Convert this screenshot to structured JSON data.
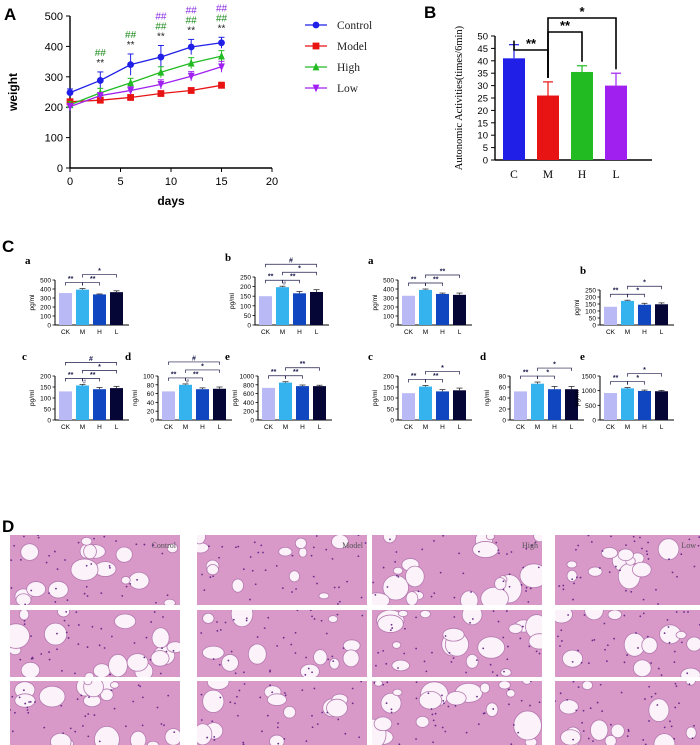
{
  "panels": {
    "A": "A",
    "B": "B",
    "C": "C",
    "D": "D"
  },
  "colors": {
    "control": "#1f1fe8",
    "model": "#e81414",
    "high": "#22bb22",
    "low": "#a020f0",
    "ck": "#b9b9f5",
    "m": "#35b3ee",
    "h": "#1046bf",
    "l": "#050536",
    "stat_dark": "#1a1a4a",
    "hash_green": "#1e8c1e",
    "hash_purple": "#8a2be2",
    "tissue": "#d898c8"
  },
  "chart_data": [
    {
      "id": "A",
      "type": "line",
      "xlabel": "days",
      "ylabel": "weight",
      "xlim": [
        0,
        20
      ],
      "ylim": [
        0,
        500
      ],
      "xticks": [
        0,
        5,
        10,
        15,
        20
      ],
      "yticks": [
        0,
        100,
        200,
        300,
        400,
        500
      ],
      "x": [
        0,
        3,
        6,
        9,
        12,
        15
      ],
      "series": [
        {
          "name": "Control",
          "color": "#1f1fe8",
          "marker": "circle",
          "values": [
            248,
            288,
            340,
            365,
            398,
            412
          ],
          "err": [
            12,
            28,
            35,
            38,
            25,
            18
          ]
        },
        {
          "name": "Model",
          "color": "#e81414",
          "marker": "square",
          "values": [
            218,
            223,
            232,
            245,
            255,
            272
          ],
          "err": [
            8,
            8,
            8,
            8,
            8,
            10
          ]
        },
        {
          "name": "High",
          "color": "#22bb22",
          "marker": "triangle-up",
          "values": [
            208,
            247,
            280,
            315,
            345,
            368
          ],
          "err": [
            10,
            15,
            15,
            18,
            18,
            18
          ]
        },
        {
          "name": "Low",
          "color": "#a020f0",
          "marker": "triangle-down",
          "values": [
            202,
            238,
            255,
            275,
            302,
            333
          ],
          "err": [
            10,
            10,
            12,
            15,
            15,
            18
          ]
        }
      ],
      "legend": "right",
      "annotations": [
        {
          "x": 3,
          "lines": [
            "##",
            "**"
          ]
        },
        {
          "x": 6,
          "lines": [
            "##",
            "**"
          ]
        },
        {
          "x": 9,
          "lines": [
            "##",
            "##",
            "**"
          ]
        },
        {
          "x": 12,
          "lines": [
            "##",
            "##",
            "**"
          ]
        },
        {
          "x": 15,
          "lines": [
            "##",
            "##",
            "**"
          ]
        }
      ]
    },
    {
      "id": "B",
      "type": "bar",
      "ylabel": "Autonomic Activities(times/6min)",
      "categories": [
        "C",
        "M",
        "H",
        "L"
      ],
      "values": [
        41,
        26,
        35.5,
        30
      ],
      "err": [
        5.5,
        5.5,
        2.5,
        5
      ],
      "colors": [
        "#1f1fe8",
        "#e81414",
        "#22bb22",
        "#a020f0"
      ],
      "ylim": [
        0,
        50
      ],
      "yticks": [
        0,
        5,
        10,
        15,
        20,
        25,
        30,
        35,
        40,
        45,
        50
      ],
      "brackets": [
        {
          "from": 0,
          "to": 1,
          "label": "**"
        },
        {
          "from": 1,
          "to": 2,
          "label": "**"
        },
        {
          "from": 1,
          "to": 3,
          "label": "*"
        }
      ]
    }
  ],
  "panelC": {
    "categories": [
      "CK",
      "M",
      "H",
      "L"
    ],
    "charts": [
      {
        "sub": "a",
        "ylabel": "pg/ml",
        "values": [
          355,
          393,
          340,
          365
        ],
        "err": [
          0,
          12,
          5,
          15
        ],
        "ymax": 500,
        "yticks": [
          0,
          100,
          200,
          300,
          400,
          500
        ],
        "brackets": [
          {
            "from": 0,
            "to": 1,
            "label": "**"
          },
          {
            "from": 1,
            "to": 2,
            "label": "**"
          },
          {
            "from": 1,
            "to": 3,
            "label": "*"
          }
        ]
      },
      {
        "sub": "b",
        "ylabel": "pg/ml",
        "values": [
          150,
          197,
          165,
          172
        ],
        "err": [
          0,
          5,
          10,
          12
        ],
        "ymax": 250,
        "yticks": [
          0,
          50,
          100,
          150,
          200,
          250
        ],
        "brackets": [
          {
            "from": 0,
            "to": 1,
            "label": "**"
          },
          {
            "from": 1,
            "to": 2,
            "label": "**"
          },
          {
            "from": 1,
            "to": 3,
            "label": "*"
          },
          {
            "from": 0,
            "to": 3,
            "label": "#"
          }
        ],
        "hash": "#"
      },
      {
        "sub": "a",
        "ylabel": "pg/ml",
        "values": [
          325,
          390,
          345,
          335
        ],
        "err": [
          0,
          10,
          10,
          20
        ],
        "ymax": 500,
        "yticks": [
          0,
          100,
          200,
          300,
          400,
          500
        ],
        "brackets": [
          {
            "from": 0,
            "to": 1,
            "label": "**"
          },
          {
            "from": 1,
            "to": 2,
            "label": "**"
          },
          {
            "from": 1,
            "to": 3,
            "label": "**"
          }
        ]
      },
      {
        "sub": "b",
        "ylabel": "pg/ml",
        "values": [
          130,
          172,
          145,
          148
        ],
        "err": [
          0,
          5,
          10,
          10
        ],
        "ymax": 250,
        "yticks": [
          0,
          50,
          100,
          150,
          200,
          250
        ],
        "brackets": [
          {
            "from": 0,
            "to": 1,
            "label": "**"
          },
          {
            "from": 1,
            "to": 2,
            "label": "*"
          },
          {
            "from": 1,
            "to": 3,
            "label": "*"
          }
        ]
      },
      {
        "sub": "c",
        "ylabel": "pg/ml",
        "values": [
          130,
          157,
          140,
          145
        ],
        "err": [
          0,
          5,
          8,
          8
        ],
        "ymax": 200,
        "yticks": [
          0,
          50,
          100,
          150,
          200
        ],
        "brackets": [
          {
            "from": 0,
            "to": 1,
            "label": "**"
          },
          {
            "from": 1,
            "to": 2,
            "label": "**"
          },
          {
            "from": 1,
            "to": 3,
            "label": "*"
          },
          {
            "from": 0,
            "to": 3,
            "label": "#"
          }
        ],
        "hash": "#"
      },
      {
        "sub": "d",
        "ylabel": "ng/ml",
        "values": [
          65,
          80,
          70,
          71
        ],
        "err": [
          0,
          2,
          3,
          4
        ],
        "ymax": 100,
        "yticks": [
          0,
          20,
          40,
          60,
          80,
          100
        ],
        "brackets": [
          {
            "from": 0,
            "to": 1,
            "label": "**"
          },
          {
            "from": 1,
            "to": 2,
            "label": "**"
          },
          {
            "from": 1,
            "to": 3,
            "label": "*"
          },
          {
            "from": 0,
            "to": 3,
            "label": "#"
          }
        ],
        "hash": "#"
      },
      {
        "sub": "e",
        "ylabel": "pg/ml",
        "values": [
          730,
          850,
          770,
          770
        ],
        "err": [
          0,
          20,
          25,
          20
        ],
        "ymax": 1000,
        "yticks": [
          0,
          200,
          400,
          600,
          800,
          1000
        ],
        "brackets": [
          {
            "from": 0,
            "to": 1,
            "label": "**"
          },
          {
            "from": 1,
            "to": 2,
            "label": "**"
          },
          {
            "from": 1,
            "to": 3,
            "label": "**"
          }
        ]
      },
      {
        "sub": "c",
        "ylabel": "pg/ml",
        "values": [
          122,
          152,
          130,
          135
        ],
        "err": [
          0,
          5,
          8,
          10
        ],
        "ymax": 200,
        "yticks": [
          0,
          50,
          100,
          150,
          200
        ],
        "brackets": [
          {
            "from": 0,
            "to": 1,
            "label": "**"
          },
          {
            "from": 1,
            "to": 2,
            "label": "**"
          },
          {
            "from": 1,
            "to": 3,
            "label": "*"
          }
        ]
      },
      {
        "sub": "d",
        "ylabel": "ng/ml",
        "values": [
          52,
          66,
          56,
          56
        ],
        "err": [
          0,
          3,
          5,
          5
        ],
        "ymax": 80,
        "yticks": [
          0,
          20,
          40,
          60,
          80
        ],
        "brackets": [
          {
            "from": 0,
            "to": 1,
            "label": "**"
          },
          {
            "from": 1,
            "to": 2,
            "label": "*"
          },
          {
            "from": 1,
            "to": 3,
            "label": "*"
          }
        ]
      },
      {
        "sub": "e",
        "ylabel": "pg/ml",
        "values": [
          920,
          1080,
          990,
          980
        ],
        "err": [
          0,
          25,
          30,
          30
        ],
        "ymax": 1500,
        "yticks": [
          0,
          500,
          1000,
          1500
        ],
        "brackets": [
          {
            "from": 0,
            "to": 1,
            "label": "**"
          },
          {
            "from": 1,
            "to": 2,
            "label": "*"
          },
          {
            "from": 1,
            "to": 3,
            "label": "*"
          }
        ]
      }
    ]
  },
  "panelD": {
    "columns": [
      "Control",
      "Model",
      "High",
      "Low"
    ]
  }
}
